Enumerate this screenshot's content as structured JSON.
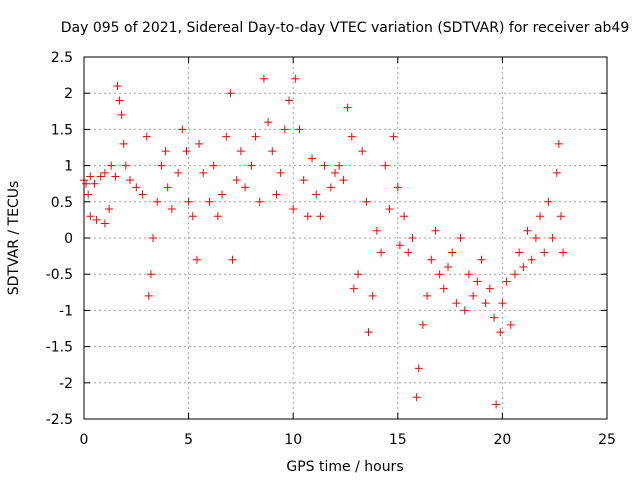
{
  "chart_data": {
    "type": "scatter",
    "title": "Day 095 of 2021, Sidereal Day-to-day VTEC variation (SDTVAR) for receiver ab49",
    "xlabel": "GPS time / hours",
    "ylabel": "SDTVAR / TECUs",
    "xlim": [
      0,
      25
    ],
    "ylim": [
      -2.5,
      2.5
    ],
    "x_ticks": [
      "0",
      "5",
      "10",
      "15",
      "20",
      "25"
    ],
    "y_ticks": [
      "2.5",
      "2",
      "1.5",
      "1",
      "0.5",
      "0",
      "-0.5",
      "-1",
      "-1.5",
      "-2",
      "-2.5"
    ],
    "grid": true,
    "marker": "+",
    "color": "#ff0000",
    "series": [
      {
        "name": "SDTVAR",
        "points": [
          [
            0.0,
            0.8
          ],
          [
            0.1,
            0.75
          ],
          [
            0.2,
            0.6
          ],
          [
            0.3,
            0.3
          ],
          [
            0.3,
            0.85
          ],
          [
            0.5,
            0.75
          ],
          [
            0.6,
            0.25
          ],
          [
            0.8,
            0.85
          ],
          [
            1.0,
            0.2
          ],
          [
            1.0,
            0.9
          ],
          [
            1.2,
            0.4
          ],
          [
            1.3,
            1.0
          ],
          [
            1.5,
            0.85
          ],
          [
            1.6,
            2.1
          ],
          [
            1.7,
            1.9
          ],
          [
            1.8,
            1.7
          ],
          [
            1.9,
            1.3
          ],
          [
            2.0,
            1.0
          ],
          [
            2.2,
            0.8
          ],
          [
            2.5,
            0.7
          ],
          [
            2.8,
            0.6
          ],
          [
            3.0,
            1.4
          ],
          [
            3.1,
            -0.8
          ],
          [
            3.2,
            -0.5
          ],
          [
            3.3,
            0.0
          ],
          [
            3.5,
            0.5
          ],
          [
            3.7,
            1.0
          ],
          [
            3.9,
            1.2
          ],
          [
            4.0,
            0.7
          ],
          [
            4.2,
            0.4
          ],
          [
            4.5,
            0.9
          ],
          [
            4.7,
            1.5
          ],
          [
            4.9,
            1.2
          ],
          [
            5.0,
            0.5
          ],
          [
            5.2,
            0.3
          ],
          [
            5.4,
            -0.3
          ],
          [
            5.5,
            1.3
          ],
          [
            5.7,
            0.9
          ],
          [
            6.0,
            0.5
          ],
          [
            6.2,
            1.0
          ],
          [
            6.4,
            0.3
          ],
          [
            6.6,
            0.6
          ],
          [
            6.8,
            1.4
          ],
          [
            7.0,
            2.0
          ],
          [
            7.1,
            -0.3
          ],
          [
            7.3,
            0.8
          ],
          [
            7.5,
            1.2
          ],
          [
            7.7,
            0.7
          ],
          [
            8.0,
            1.0
          ],
          [
            8.2,
            1.4
          ],
          [
            8.4,
            0.5
          ],
          [
            8.6,
            2.2
          ],
          [
            8.8,
            1.6
          ],
          [
            9.0,
            1.2
          ],
          [
            9.2,
            0.6
          ],
          [
            9.4,
            0.9
          ],
          [
            9.6,
            1.5
          ],
          [
            9.8,
            1.9
          ],
          [
            10.0,
            0.4
          ],
          [
            10.1,
            2.2
          ],
          [
            10.3,
            1.5
          ],
          [
            10.5,
            0.8
          ],
          [
            10.7,
            0.3
          ],
          [
            10.9,
            1.1
          ],
          [
            11.1,
            0.6
          ],
          [
            11.3,
            0.3
          ],
          [
            11.5,
            1.0
          ],
          [
            11.8,
            0.7
          ],
          [
            12.0,
            0.9
          ],
          [
            12.2,
            1.0
          ],
          [
            12.4,
            0.8
          ],
          [
            12.6,
            1.8
          ],
          [
            12.8,
            1.4
          ],
          [
            12.9,
            -0.7
          ],
          [
            13.1,
            -0.5
          ],
          [
            13.3,
            1.2
          ],
          [
            13.5,
            0.5
          ],
          [
            13.6,
            -1.3
          ],
          [
            13.8,
            -0.8
          ],
          [
            14.0,
            0.1
          ],
          [
            14.2,
            -0.2
          ],
          [
            14.4,
            1.0
          ],
          [
            14.6,
            0.4
          ],
          [
            14.8,
            1.4
          ],
          [
            15.0,
            0.7
          ],
          [
            15.1,
            -0.1
          ],
          [
            15.3,
            0.3
          ],
          [
            15.5,
            -0.2
          ],
          [
            15.7,
            0.0
          ],
          [
            15.9,
            -2.2
          ],
          [
            16.0,
            -1.8
          ],
          [
            16.2,
            -1.2
          ],
          [
            16.4,
            -0.8
          ],
          [
            16.6,
            -0.3
          ],
          [
            16.8,
            0.1
          ],
          [
            17.0,
            -0.5
          ],
          [
            17.2,
            -0.7
          ],
          [
            17.4,
            -0.4
          ],
          [
            17.6,
            -0.2
          ],
          [
            17.8,
            -0.9
          ],
          [
            18.0,
            0.0
          ],
          [
            18.2,
            -1.0
          ],
          [
            18.4,
            -0.5
          ],
          [
            18.6,
            -0.8
          ],
          [
            18.8,
            -0.6
          ],
          [
            19.0,
            -0.3
          ],
          [
            19.2,
            -0.9
          ],
          [
            19.4,
            -0.7
          ],
          [
            19.6,
            -1.1
          ],
          [
            19.7,
            -2.3
          ],
          [
            19.9,
            -1.3
          ],
          [
            20.0,
            -0.9
          ],
          [
            20.2,
            -0.6
          ],
          [
            20.4,
            -1.2
          ],
          [
            20.6,
            -0.5
          ],
          [
            20.8,
            -0.2
          ],
          [
            21.0,
            -0.4
          ],
          [
            21.2,
            0.1
          ],
          [
            21.4,
            -0.3
          ],
          [
            21.6,
            0.0
          ],
          [
            21.8,
            0.3
          ],
          [
            22.0,
            -0.2
          ],
          [
            22.2,
            0.5
          ],
          [
            22.4,
            0.0
          ],
          [
            22.6,
            0.9
          ],
          [
            22.7,
            1.3
          ],
          [
            22.8,
            0.3
          ],
          [
            22.9,
            -0.2
          ]
        ]
      }
    ]
  }
}
